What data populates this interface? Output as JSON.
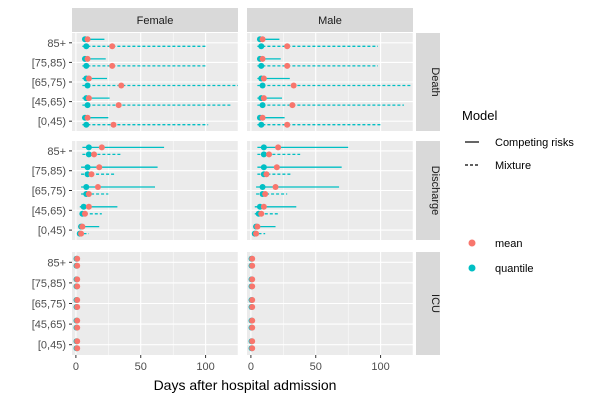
{
  "chart_data": {
    "type": "errorbar-dotplot",
    "xlabel": "Days after hospital admission",
    "ylabel": "",
    "xlim": [
      -3,
      125
    ],
    "x_ticks": [
      0,
      50,
      100
    ],
    "facet_columns": [
      "Female",
      "Male"
    ],
    "facet_rows": [
      "Death",
      "Discharge",
      "ICU"
    ],
    "age_groups": [
      "85+",
      "[75,85)",
      "[65,75)",
      "[45,65)",
      "[0,45)"
    ],
    "legend": {
      "model_title": "Model",
      "model_items": [
        {
          "label": "Competing risks",
          "linetype": "solid"
        },
        {
          "label": "Mixture",
          "linetype": "dashed"
        }
      ],
      "stat_items": [
        {
          "label": "mean",
          "color": "#F8766D"
        },
        {
          "label": "quantile",
          "color": "#00BFC4"
        }
      ]
    },
    "colors": {
      "mean": "#F8766D",
      "quantile": "#00BFC4",
      "line": "#00BFC4",
      "panel_bg": "#EBEBEB",
      "strip_bg": "#D9D9D9",
      "grid": "#FFFFFF"
    },
    "series_description": "Each age group has two sub-rows: Competing risks (solid bar, top) and Mixture (dashed bar, bottom). Bar spans [lo, hi] days; points show mean and quantile.",
    "panels": [
      {
        "sex": "Female",
        "outcome": "Death",
        "rows": [
          {
            "age": "85+",
            "competing": {
              "lo": 5,
              "hi": 22,
              "mean": 9,
              "quantile": 7
            },
            "mixture": {
              "lo": 5,
              "hi": 100,
              "mean": 28,
              "quantile": 8
            }
          },
          {
            "age": "[75,85)",
            "competing": {
              "lo": 5,
              "hi": 23,
              "mean": 9,
              "quantile": 7
            },
            "mixture": {
              "lo": 5,
              "hi": 100,
              "mean": 28,
              "quantile": 8
            }
          },
          {
            "age": "[65,75)",
            "competing": {
              "lo": 5,
              "hi": 24,
              "mean": 10,
              "quantile": 8
            },
            "mixture": {
              "lo": 5,
              "hi": 125,
              "mean": 35,
              "quantile": 9
            }
          },
          {
            "age": "[45,65)",
            "competing": {
              "lo": 5,
              "hi": 26,
              "mean": 10,
              "quantile": 8
            },
            "mixture": {
              "lo": 5,
              "hi": 120,
              "mean": 33,
              "quantile": 9
            }
          },
          {
            "age": "[0,45)",
            "competing": {
              "lo": 5,
              "hi": 25,
              "mean": 9,
              "quantile": 7
            },
            "mixture": {
              "lo": 5,
              "hi": 102,
              "mean": 29,
              "quantile": 8
            }
          }
        ]
      },
      {
        "sex": "Male",
        "outcome": "Death",
        "rows": [
          {
            "age": "85+",
            "competing": {
              "lo": 5,
              "hi": 22,
              "mean": 9,
              "quantile": 7
            },
            "mixture": {
              "lo": 5,
              "hi": 98,
              "mean": 28,
              "quantile": 8
            }
          },
          {
            "age": "[75,85)",
            "competing": {
              "lo": 5,
              "hi": 23,
              "mean": 9,
              "quantile": 7
            },
            "mixture": {
              "lo": 5,
              "hi": 98,
              "mean": 28,
              "quantile": 8
            }
          },
          {
            "age": "[65,75)",
            "competing": {
              "lo": 5,
              "hi": 30,
              "mean": 10,
              "quantile": 8
            },
            "mixture": {
              "lo": 5,
              "hi": 123,
              "mean": 33,
              "quantile": 9
            }
          },
          {
            "age": "[45,65)",
            "competing": {
              "lo": 5,
              "hi": 24,
              "mean": 10,
              "quantile": 8
            },
            "mixture": {
              "lo": 5,
              "hi": 118,
              "mean": 32,
              "quantile": 9
            }
          },
          {
            "age": "[0,45)",
            "competing": {
              "lo": 5,
              "hi": 26,
              "mean": 9,
              "quantile": 7
            },
            "mixture": {
              "lo": 5,
              "hi": 100,
              "mean": 28,
              "quantile": 8
            }
          }
        ]
      },
      {
        "sex": "Female",
        "outcome": "Discharge",
        "rows": [
          {
            "age": "85+",
            "competing": {
              "lo": 5,
              "hi": 68,
              "mean": 20,
              "quantile": 10
            },
            "mixture": {
              "lo": 5,
              "hi": 35,
              "mean": 14,
              "quantile": 10
            }
          },
          {
            "age": "[75,85)",
            "competing": {
              "lo": 4,
              "hi": 63,
              "mean": 18,
              "quantile": 9
            },
            "mixture": {
              "lo": 4,
              "hi": 30,
              "mean": 12,
              "quantile": 9
            }
          },
          {
            "age": "[65,75)",
            "competing": {
              "lo": 4,
              "hi": 61,
              "mean": 17,
              "quantile": 8
            },
            "mixture": {
              "lo": 4,
              "hi": 25,
              "mean": 10,
              "quantile": 8
            }
          },
          {
            "age": "[45,65)",
            "competing": {
              "lo": 3,
              "hi": 32,
              "mean": 10,
              "quantile": 6
            },
            "mixture": {
              "lo": 3,
              "hi": 20,
              "mean": 7,
              "quantile": 5
            }
          },
          {
            "age": "[0,45)",
            "competing": {
              "lo": 2,
              "hi": 18,
              "mean": 5,
              "quantile": 4
            },
            "mixture": {
              "lo": 2,
              "hi": 10,
              "mean": 4,
              "quantile": 3
            }
          }
        ]
      },
      {
        "sex": "Male",
        "outcome": "Discharge",
        "rows": [
          {
            "age": "85+",
            "competing": {
              "lo": 5,
              "hi": 75,
              "mean": 21,
              "quantile": 10
            },
            "mixture": {
              "lo": 5,
              "hi": 38,
              "mean": 14,
              "quantile": 10
            }
          },
          {
            "age": "[75,85)",
            "competing": {
              "lo": 5,
              "hi": 70,
              "mean": 20,
              "quantile": 10
            },
            "mixture": {
              "lo": 5,
              "hi": 32,
              "mean": 12,
              "quantile": 10
            }
          },
          {
            "age": "[65,75)",
            "competing": {
              "lo": 4,
              "hi": 68,
              "mean": 19,
              "quantile": 9
            },
            "mixture": {
              "lo": 4,
              "hi": 28,
              "mean": 11,
              "quantile": 9
            }
          },
          {
            "age": "[45,65)",
            "competing": {
              "lo": 3,
              "hi": 35,
              "mean": 10,
              "quantile": 7
            },
            "mixture": {
              "lo": 3,
              "hi": 22,
              "mean": 8,
              "quantile": 6
            }
          },
          {
            "age": "[0,45)",
            "competing": {
              "lo": 2,
              "hi": 19,
              "mean": 5,
              "quantile": 4
            },
            "mixture": {
              "lo": 2,
              "hi": 11,
              "mean": 4,
              "quantile": 3
            }
          }
        ]
      },
      {
        "sex": "Female",
        "outcome": "ICU",
        "rows": [
          {
            "age": "85+",
            "competing": {
              "lo": 0,
              "hi": 3,
              "mean": 1,
              "quantile": 0.5
            },
            "mixture": {
              "lo": 0,
              "hi": 2,
              "mean": 1,
              "quantile": 0.5
            }
          },
          {
            "age": "[75,85)",
            "competing": {
              "lo": 0,
              "hi": 3,
              "mean": 1,
              "quantile": 0.5
            },
            "mixture": {
              "lo": 0,
              "hi": 2,
              "mean": 1,
              "quantile": 0.5
            }
          },
          {
            "age": "[65,75)",
            "competing": {
              "lo": 0,
              "hi": 3,
              "mean": 1,
              "quantile": 0.5
            },
            "mixture": {
              "lo": 0,
              "hi": 2,
              "mean": 1,
              "quantile": 0.5
            }
          },
          {
            "age": "[45,65)",
            "competing": {
              "lo": 0,
              "hi": 3,
              "mean": 1,
              "quantile": 0.5
            },
            "mixture": {
              "lo": 0,
              "hi": 2,
              "mean": 1,
              "quantile": 0.5
            }
          },
          {
            "age": "[0,45)",
            "competing": {
              "lo": 0,
              "hi": 3,
              "mean": 1,
              "quantile": 0.5
            },
            "mixture": {
              "lo": 0,
              "hi": 2,
              "mean": 1,
              "quantile": 0.5
            }
          }
        ]
      },
      {
        "sex": "Male",
        "outcome": "ICU",
        "rows": [
          {
            "age": "85+",
            "competing": {
              "lo": 0,
              "hi": 3,
              "mean": 1,
              "quantile": 0.5
            },
            "mixture": {
              "lo": 0,
              "hi": 2,
              "mean": 1,
              "quantile": 0.5
            }
          },
          {
            "age": "[75,85)",
            "competing": {
              "lo": 0,
              "hi": 3,
              "mean": 1,
              "quantile": 0.5
            },
            "mixture": {
              "lo": 0,
              "hi": 2,
              "mean": 1,
              "quantile": 0.5
            }
          },
          {
            "age": "[65,75)",
            "competing": {
              "lo": 0,
              "hi": 3,
              "mean": 1,
              "quantile": 0.5
            },
            "mixture": {
              "lo": 0,
              "hi": 2,
              "mean": 1,
              "quantile": 0.5
            }
          },
          {
            "age": "[45,65)",
            "competing": {
              "lo": 0,
              "hi": 3,
              "mean": 1,
              "quantile": 0.5
            },
            "mixture": {
              "lo": 0,
              "hi": 2,
              "mean": 1,
              "quantile": 0.5
            }
          },
          {
            "age": "[0,45)",
            "competing": {
              "lo": 0,
              "hi": 3,
              "mean": 1,
              "quantile": 0.5
            },
            "mixture": {
              "lo": 0,
              "hi": 2,
              "mean": 1,
              "quantile": 0.5
            }
          }
        ]
      }
    ]
  }
}
